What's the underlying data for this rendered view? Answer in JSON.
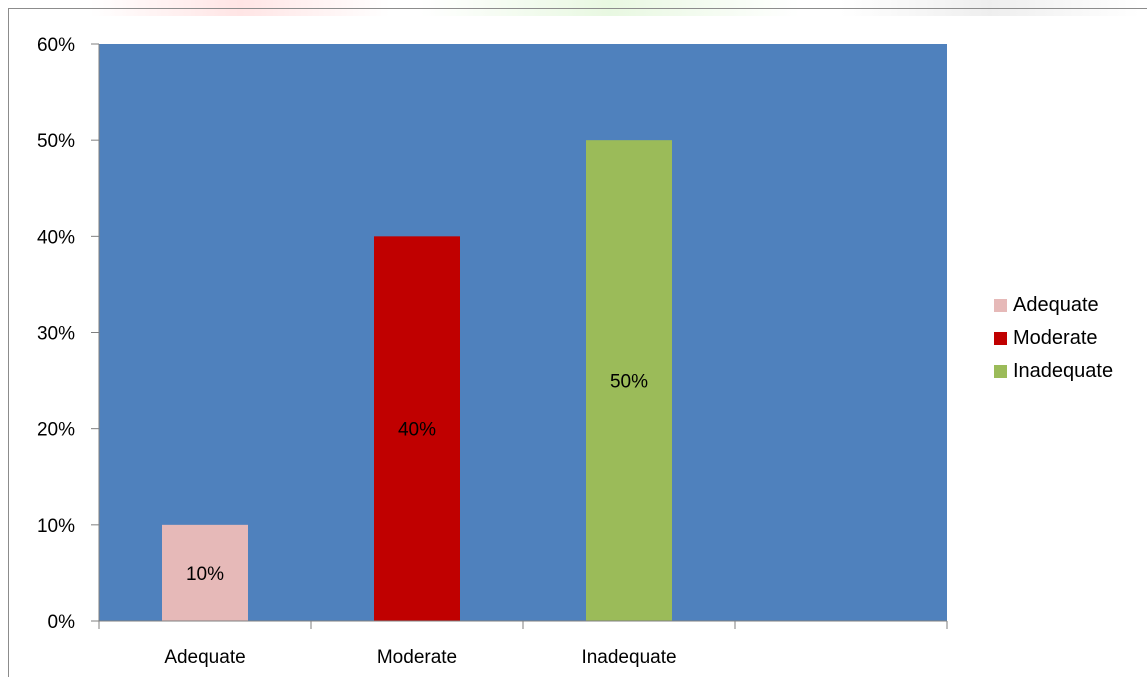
{
  "chart_data": {
    "type": "bar",
    "categories": [
      "Adequate",
      "Moderate",
      "Inadequate"
    ],
    "values": [
      10,
      40,
      50
    ],
    "data_labels": [
      "10%",
      "40%",
      "50%"
    ],
    "colors": [
      "#e6b9b8",
      "#c00000",
      "#9bbb59"
    ],
    "plot_background": "#4f81bd",
    "ylim": [
      0,
      60
    ],
    "yticks": [
      0,
      10,
      20,
      30,
      40,
      50,
      60
    ],
    "ytick_labels": [
      "0%",
      "10%",
      "20%",
      "30%",
      "40%",
      "50%",
      "60%"
    ],
    "slot_count": 4,
    "grid": false,
    "legend": {
      "position": "right",
      "entries": [
        "Adequate",
        "Moderate",
        "Inadequate"
      ]
    },
    "title": "",
    "xlabel": "",
    "ylabel": ""
  }
}
